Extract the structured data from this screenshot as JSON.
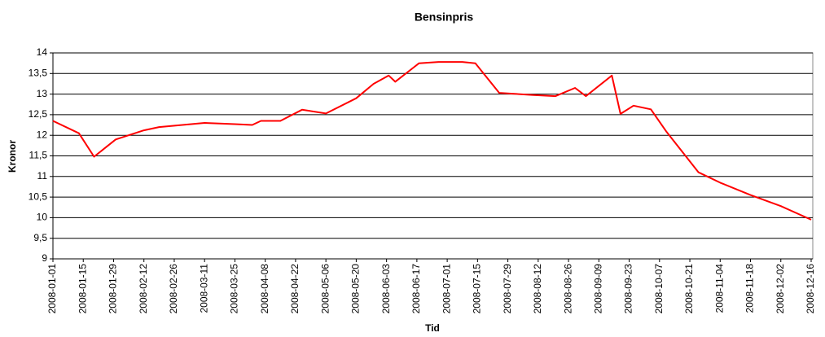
{
  "chart_data": {
    "type": "line",
    "title": "Bensinpris",
    "x_label": "Tid",
    "y_label": "Kronor",
    "x": [
      "2008-01-01",
      "2008-01-13",
      "2008-01-20",
      "2008-01-30",
      "2008-02-12",
      "2008-02-19",
      "2008-03-11",
      "2008-03-25",
      "2008-04-02",
      "2008-04-06",
      "2008-04-15",
      "2008-04-25",
      "2008-05-06",
      "2008-05-20",
      "2008-05-28",
      "2008-06-04",
      "2008-06-07",
      "2008-06-18",
      "2008-06-27",
      "2008-07-08",
      "2008-07-14",
      "2008-07-25",
      "2008-08-09",
      "2008-08-20",
      "2008-08-29",
      "2008-09-03",
      "2008-09-15",
      "2008-09-19",
      "2008-09-25",
      "2008-10-03",
      "2008-10-10",
      "2008-10-25",
      "2008-11-04",
      "2008-11-18",
      "2008-12-02",
      "2008-12-16"
    ],
    "series": [
      {
        "name": "Bensinpris",
        "color": "#ff0000",
        "values": [
          12.35,
          12.05,
          11.48,
          11.9,
          12.12,
          12.2,
          12.3,
          12.27,
          12.25,
          12.35,
          12.35,
          12.62,
          12.53,
          12.9,
          13.25,
          13.45,
          13.3,
          13.75,
          13.78,
          13.78,
          13.75,
          13.03,
          12.98,
          12.95,
          13.15,
          12.95,
          13.45,
          12.52,
          12.72,
          12.63,
          12.1,
          11.1,
          10.85,
          10.55,
          10.28,
          9.95
        ]
      }
    ],
    "xlim": [
      "2008-01-01",
      "2008-12-16"
    ],
    "xticks": [
      "2008-01-01",
      "2008-01-15",
      "2008-01-29",
      "2008-02-12",
      "2008-02-26",
      "2008-03-11",
      "2008-03-25",
      "2008-04-08",
      "2008-04-22",
      "2008-05-06",
      "2008-05-20",
      "2008-06-03",
      "2008-06-17",
      "2008-07-01",
      "2008-07-15",
      "2008-07-29",
      "2008-08-12",
      "2008-08-26",
      "2008-09-09",
      "2008-09-23",
      "2008-10-07",
      "2008-10-21",
      "2008-11-04",
      "2008-11-18",
      "2008-12-02",
      "2008-12-16"
    ],
    "ylim": [
      9,
      14
    ],
    "yticks": [
      9,
      {
        "value": 9.5,
        "label": "9,5"
      },
      10,
      {
        "value": 10.5,
        "label": "10,5"
      },
      11,
      {
        "value": 11.5,
        "label": "11,5"
      },
      12,
      {
        "value": 12.5,
        "label": "12,5"
      },
      13,
      {
        "value": 13.5,
        "label": "13,5"
      },
      14
    ],
    "grid": true
  }
}
